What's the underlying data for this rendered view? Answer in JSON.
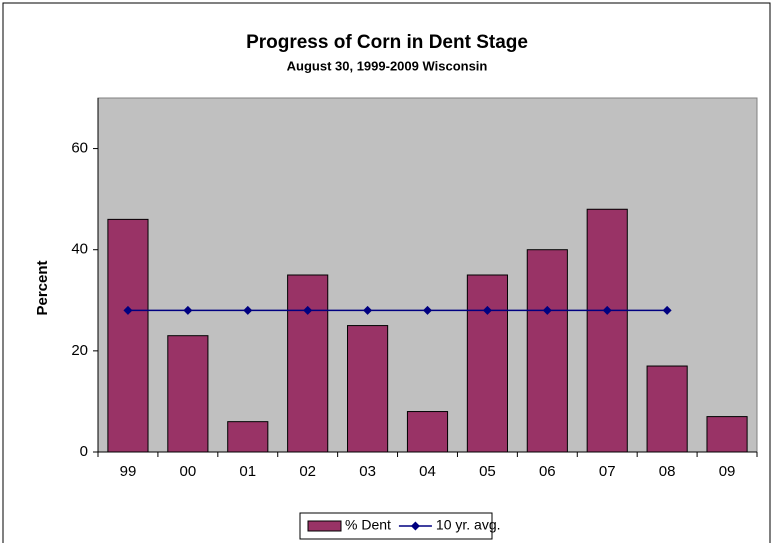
{
  "chart_data": {
    "type": "bar",
    "title": "Progress of Corn in Dent Stage",
    "subtitle": "August 30, 1999-2009 Wisconsin",
    "y_label": "Percent",
    "categories": [
      "99",
      "00",
      "01",
      "02",
      "03",
      "04",
      "05",
      "06",
      "07",
      "08",
      "09"
    ],
    "series": [
      {
        "name": "% Dent",
        "type": "bar",
        "color": "#993366",
        "values": [
          46,
          23,
          6,
          35,
          25,
          8,
          35,
          40,
          48,
          17,
          7
        ]
      },
      {
        "name": "10 yr. avg.",
        "type": "line",
        "color": "#000080",
        "values": [
          28,
          28,
          28,
          28,
          28,
          28,
          28,
          28,
          28,
          28,
          null
        ]
      }
    ],
    "ylim": [
      0,
      70
    ],
    "yticks": [
      0,
      20,
      40,
      60
    ],
    "plot_background": "#c0c0c0",
    "legend": "bottom"
  }
}
